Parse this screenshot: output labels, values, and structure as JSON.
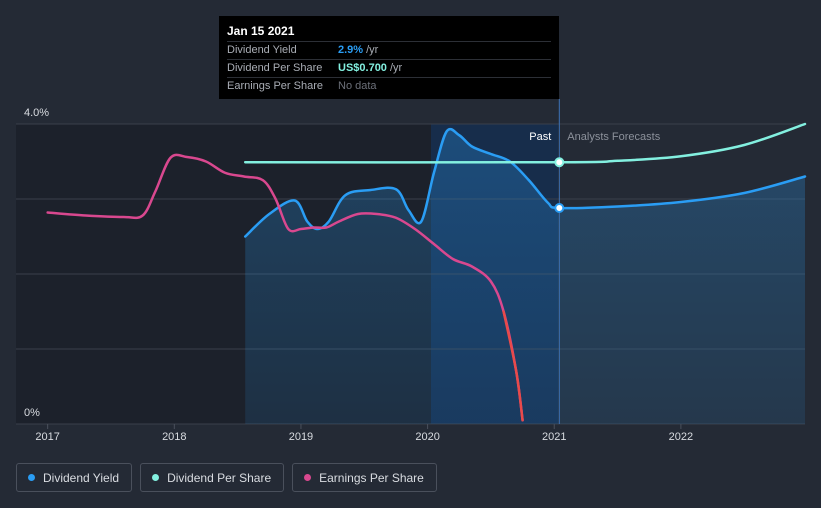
{
  "tooltip": {
    "date": "Jan 15 2021",
    "rows": [
      {
        "label": "Dividend Yield",
        "value": "2.9%",
        "unit": "/yr"
      },
      {
        "label": "Dividend Per Share",
        "value": "US$0.700",
        "unit": "/yr"
      },
      {
        "label": "Earnings Per Share",
        "value": "No data"
      }
    ]
  },
  "legend": [
    {
      "label": "Dividend Yield",
      "color": "#2a9df4"
    },
    {
      "label": "Dividend Per Share",
      "color": "#83f0e0"
    },
    {
      "label": "Earnings Per Share",
      "color": "#d9488f"
    }
  ],
  "chart_data": {
    "type": "line",
    "ylim": [
      0,
      4.0
    ],
    "y_ticks": [
      "4.0%",
      "0%"
    ],
    "x_ticks": [
      "2017",
      "2018",
      "2019",
      "2020",
      "2021",
      "2022"
    ],
    "xlim": [
      2016.75,
      2022.98
    ],
    "past_label": "Past",
    "forecast_label": "Analysts Forecasts",
    "divider_x": 2021.04,
    "grid": true,
    "series": [
      {
        "name": "Dividend Yield",
        "color": "#2a9df4",
        "x": [
          2018.56,
          2018.75,
          2018.95,
          2019.05,
          2019.13,
          2019.22,
          2019.35,
          2019.55,
          2019.75,
          2019.85,
          2019.95,
          2020.05,
          2020.15,
          2020.25,
          2020.35,
          2020.5,
          2020.65,
          2020.8,
          2020.95,
          2021.04,
          2021.5,
          2022.0,
          2022.5,
          2022.98
        ],
        "y": [
          2.5,
          2.8,
          2.98,
          2.7,
          2.6,
          2.7,
          3.05,
          3.12,
          3.13,
          2.85,
          2.7,
          3.35,
          3.9,
          3.85,
          3.7,
          3.6,
          3.5,
          3.25,
          2.95,
          2.88,
          2.9,
          2.96,
          3.08,
          3.3
        ]
      },
      {
        "name": "Dividend Per Share",
        "color": "#83f0e0",
        "x": [
          2018.56,
          2021.04,
          2021.5,
          2022.0,
          2022.5,
          2022.98
        ],
        "y": [
          3.49,
          3.49,
          3.51,
          3.57,
          3.72,
          4.0
        ]
      },
      {
        "name": "Earnings Per Share",
        "color": "#d9488f",
        "x": [
          2017.0,
          2017.3,
          2017.6,
          2017.75,
          2017.85,
          2017.97,
          2018.1,
          2018.25,
          2018.4,
          2018.55,
          2018.7,
          2018.8,
          2018.9,
          2019.0,
          2019.1,
          2019.2,
          2019.3,
          2019.45,
          2019.6,
          2019.75,
          2019.9,
          2020.05,
          2020.2,
          2020.35,
          2020.5,
          2020.6,
          2020.7,
          2020.75
        ],
        "y": [
          2.82,
          2.78,
          2.76,
          2.78,
          3.1,
          3.55,
          3.56,
          3.5,
          3.35,
          3.3,
          3.25,
          3.0,
          2.6,
          2.6,
          2.62,
          2.62,
          2.7,
          2.8,
          2.8,
          2.75,
          2.6,
          2.4,
          2.2,
          2.1,
          1.9,
          1.5,
          0.7,
          0.05
        ]
      }
    ]
  }
}
